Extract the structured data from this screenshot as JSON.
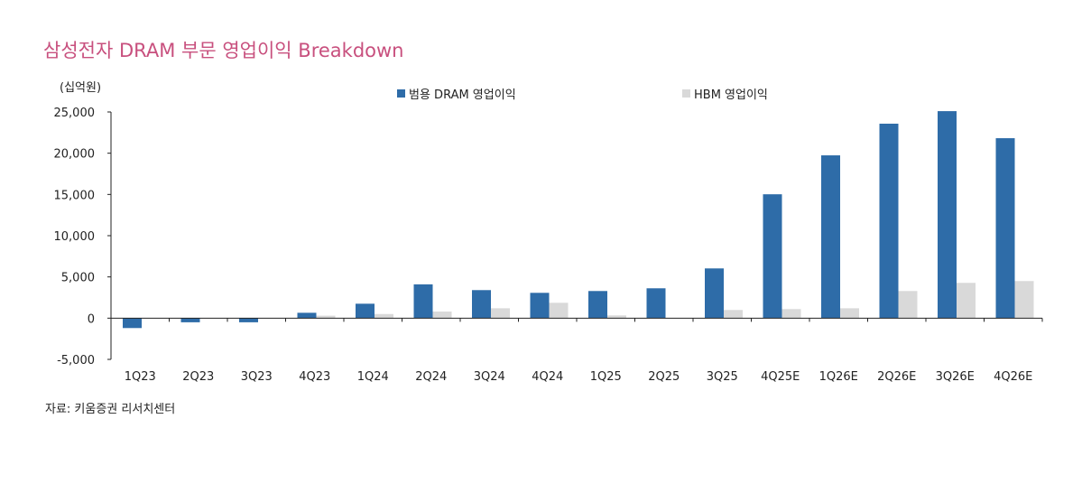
{
  "title": "삼성전자 DRAM 부문 영업이익 Breakdown",
  "source": "자료: 키움증권 리서치센터",
  "chart_data": {
    "type": "bar",
    "title": "삼성전자 DRAM 부문 영업이익 Breakdown",
    "ylabel": "(십억원)",
    "xlabel": "",
    "ylim": [
      -5000,
      25000
    ],
    "yticks": [
      -5000,
      0,
      5000,
      10000,
      15000,
      20000,
      25000
    ],
    "ytick_labels": [
      "-5,000",
      "0",
      "5,000",
      "10,000",
      "15,000",
      "20,000",
      "25,000"
    ],
    "grid": false,
    "legend": "top",
    "categories": [
      "1Q23",
      "2Q23",
      "3Q23",
      "4Q23",
      "1Q24",
      "2Q24",
      "3Q24",
      "4Q24",
      "1Q25",
      "2Q25",
      "3Q25",
      "4Q25E",
      "1Q26E",
      "2Q26E",
      "3Q26E",
      "4Q26E"
    ],
    "series": [
      {
        "name": "범용 DRAM 영업이익",
        "color": "#2e6ca8",
        "values": [
          -1200,
          -500,
          -500,
          650,
          1750,
          4100,
          3400,
          3070,
          3290,
          3620,
          6030,
          15020,
          19740,
          23580,
          25100,
          21820
        ]
      },
      {
        "name": "HBM 영업이익",
        "color": "#d9d9d9",
        "values": [
          0,
          0,
          0,
          300,
          500,
          800,
          1200,
          1860,
          330,
          0,
          990,
          1100,
          1200,
          3290,
          4280,
          4500
        ]
      }
    ]
  }
}
